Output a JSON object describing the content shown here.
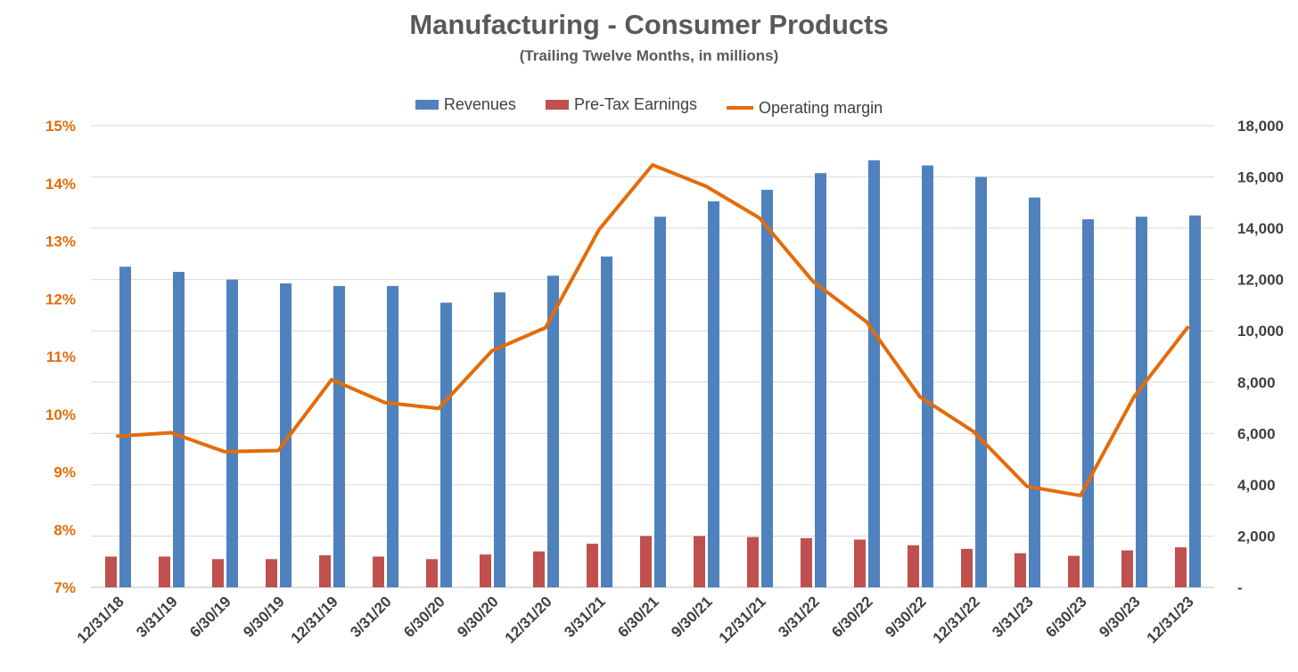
{
  "chart_data": {
    "type": "bar",
    "title": "Manufacturing - Consumer Products",
    "subtitle": "(Trailing Twelve Months, in millions)",
    "categories": [
      "12/31/18",
      "3/31/19",
      "6/30/19",
      "9/30/19",
      "12/31/19",
      "3/31/20",
      "6/30/20",
      "9/30/20",
      "12/31/20",
      "3/31/21",
      "6/30/21",
      "9/30/21",
      "12/31/21",
      "3/31/22",
      "6/30/22",
      "9/30/22",
      "12/31/22",
      "3/31/23",
      "6/30/23",
      "9/30/23",
      "12/31/23"
    ],
    "series": [
      {
        "name": "Revenues",
        "kind": "bar",
        "axis": "right",
        "color": "#4F81BD",
        "values": [
          12500,
          12300,
          12000,
          11850,
          11750,
          11750,
          11100,
          11500,
          12150,
          12900,
          14450,
          15050,
          15500,
          16150,
          16650,
          16450,
          16000,
          15200,
          14350,
          14450,
          14500
        ]
      },
      {
        "name": "Pre-Tax Earnings",
        "kind": "bar",
        "axis": "right",
        "color": "#C0504D",
        "values": [
          1200,
          1200,
          1100,
          1100,
          1250,
          1200,
          1100,
          1280,
          1400,
          1700,
          2000,
          2000,
          1960,
          1920,
          1860,
          1640,
          1500,
          1330,
          1230,
          1440,
          1560
        ]
      },
      {
        "name": "Operating margin",
        "kind": "line",
        "axis": "left",
        "color": "#E36C0A",
        "values": [
          9.62,
          9.68,
          9.35,
          9.37,
          10.6,
          10.2,
          10.1,
          11.1,
          11.5,
          13.2,
          14.32,
          13.95,
          13.4,
          12.3,
          11.6,
          10.3,
          9.7,
          8.75,
          8.59,
          10.3,
          11.5
        ]
      }
    ],
    "y_left": {
      "min": 7,
      "max": 15,
      "step": 1,
      "ticks": [
        "7%",
        "8%",
        "9%",
        "10%",
        "11%",
        "12%",
        "13%",
        "14%",
        "15%"
      ],
      "color": "#E36C0A"
    },
    "y_right": {
      "min": 0,
      "max": 18000,
      "step": 2000,
      "ticks": [
        "-",
        "2,000",
        "4,000",
        "6,000",
        "8,000",
        "10,000",
        "12,000",
        "14,000",
        "16,000",
        "18,000"
      ]
    },
    "grid": true,
    "legend_position": "top"
  }
}
